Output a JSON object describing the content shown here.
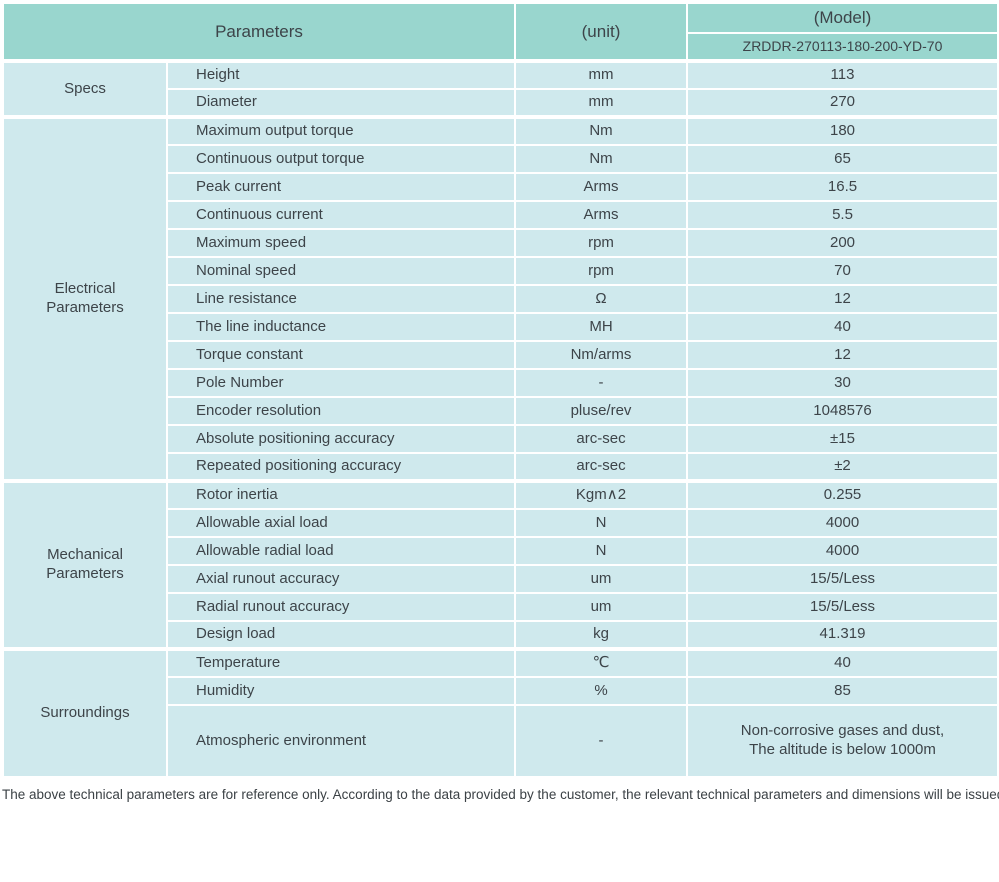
{
  "header": {
    "parameters_label": "Parameters",
    "unit_label": "(unit)",
    "model_label": "(Model)",
    "model_code": "ZRDDR-270113-180-200-YD-70"
  },
  "sections": [
    {
      "id": "specs",
      "name": "Specs",
      "rows": [
        {
          "param": "Height",
          "unit": "mm",
          "value": "113"
        },
        {
          "param": "Diameter",
          "unit": "mm",
          "value": "270"
        }
      ]
    },
    {
      "id": "electrical-parameters",
      "name": "Electrical Parameters",
      "rows": [
        {
          "param": "Maximum output torque",
          "unit": "Nm",
          "value": "180"
        },
        {
          "param": "Continuous output torque",
          "unit": "Nm",
          "value": "65"
        },
        {
          "param": "Peak current",
          "unit": "Arms",
          "value": "16.5"
        },
        {
          "param": "Continuous current",
          "unit": "Arms",
          "value": "5.5"
        },
        {
          "param": "Maximum speed",
          "unit": "rpm",
          "value": "200"
        },
        {
          "param": "Nominal speed",
          "unit": "rpm",
          "value": "70"
        },
        {
          "param": "Line resistance",
          "unit": "Ω",
          "value": "12"
        },
        {
          "param": "The line inductance",
          "unit": "MH",
          "value": "40"
        },
        {
          "param": "Torque constant",
          "unit": "Nm/arms",
          "value": "12"
        },
        {
          "param": "Pole Number",
          "unit": "-",
          "value": "30"
        },
        {
          "param": "Encoder resolution",
          "unit": "pluse/rev",
          "value": "1048576"
        },
        {
          "param": "Absolute positioning accuracy",
          "unit": "arc-sec",
          "value": "±15"
        },
        {
          "param": "Repeated positioning accuracy",
          "unit": "arc-sec",
          "value": "±2"
        }
      ]
    },
    {
      "id": "mechanical-parameters",
      "name": "Mechanical Parameters",
      "rows": [
        {
          "param": "Rotor inertia",
          "unit": "Kgm∧2",
          "value": "0.255"
        },
        {
          "param": "Allowable axial load",
          "unit": "N",
          "value": "4000"
        },
        {
          "param": "Allowable radial load",
          "unit": "N",
          "value": "4000"
        },
        {
          "param": "Axial runout accuracy",
          "unit": "um",
          "value": "15/5/Less"
        },
        {
          "param": "Radial runout accuracy",
          "unit": "um",
          "value": "15/5/Less"
        },
        {
          "param": "Design load",
          "unit": "kg",
          "value": "41.319"
        }
      ]
    },
    {
      "id": "surroundings",
      "name": "Surroundings",
      "rows": [
        {
          "param": "Temperature",
          "unit": "℃",
          "value": "40"
        },
        {
          "param": "Humidity",
          "unit": "%",
          "value": "85"
        },
        {
          "param": "Atmospheric environment",
          "unit": "-",
          "value": "Non-corrosive gases and dust,\nThe altitude is below 1000m"
        }
      ]
    }
  ],
  "footer_note": "The above technical parameters are for reference only. According to the data provided by the customer, the relevant technical parameters and dimensions will be issued.",
  "colors": {
    "header_bg": "#99d6ce",
    "row_bg": "#cfe9ed",
    "border": "#ffffff",
    "text": "#3d4449"
  }
}
